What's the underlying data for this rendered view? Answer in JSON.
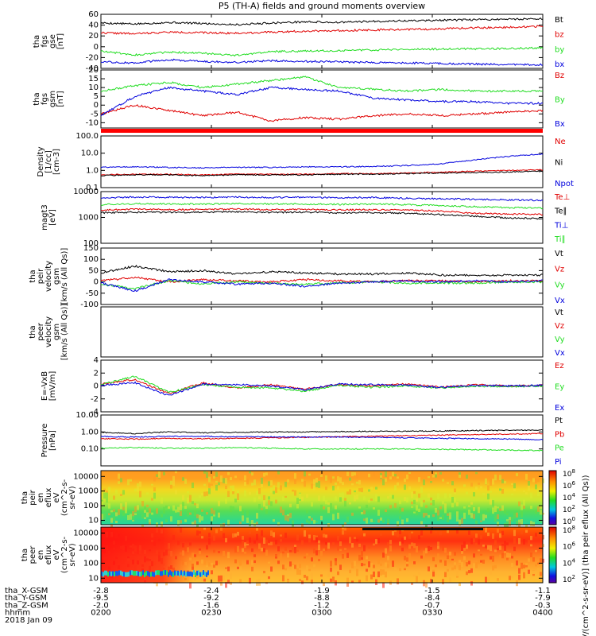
{
  "title": "P5 (TH-A) fields and ground moments overview",
  "colors": {
    "black": "#000000",
    "red": "#e00000",
    "green": "#22dd22",
    "blue": "#0000dd"
  },
  "chart_data": [
    {
      "id": "fgs-gse",
      "type": "line",
      "ylabel": [
        "tha",
        "fgs",
        "gse",
        "[nT]"
      ],
      "ylim": [
        -40,
        60
      ],
      "yticks": [
        60,
        40,
        20,
        0,
        -20,
        -40
      ],
      "series": [
        {
          "name": "Bt",
          "color": "#000000",
          "values": [
            44,
            42,
            45,
            43,
            41,
            44,
            46,
            45,
            47,
            48,
            49,
            50,
            51,
            52
          ]
        },
        {
          "name": "bz",
          "color": "#e00000",
          "values": [
            26,
            24,
            27,
            26,
            25,
            27,
            29,
            30,
            31,
            32,
            33,
            35,
            36,
            38
          ]
        },
        {
          "name": "by",
          "color": "#22dd22",
          "values": [
            -8,
            -15,
            -10,
            -12,
            -16,
            -9,
            -8,
            -7,
            -6,
            -5,
            -4,
            -4,
            -3,
            -2
          ]
        },
        {
          "name": "bx",
          "color": "#0000dd",
          "values": [
            -28,
            -30,
            -24,
            -27,
            -29,
            -26,
            -27,
            -28,
            -29,
            -30,
            -31,
            -32,
            -33,
            -33
          ]
        }
      ]
    },
    {
      "id": "fgs-gsm",
      "type": "line",
      "ylabel": [
        "tha",
        "fgs",
        "gsm",
        "[nT]"
      ],
      "ylim": [
        -13,
        20
      ],
      "yticks": [
        20,
        15,
        10,
        5,
        0,
        -5,
        -10
      ],
      "series": [
        {
          "name": "Bz",
          "color": "#e00000",
          "values": [
            -5,
            0,
            -3,
            -6,
            -4,
            -9,
            -7,
            -8,
            -6,
            -5,
            -6,
            -5,
            -4,
            -3
          ]
        },
        {
          "name": "By",
          "color": "#22dd22",
          "values": [
            8,
            11,
            13,
            10,
            12,
            14,
            16,
            10,
            9,
            8,
            9,
            8,
            8,
            8
          ]
        },
        {
          "name": "Bx",
          "color": "#0000dd",
          "values": [
            -6,
            5,
            10,
            8,
            6,
            10,
            9,
            8,
            4,
            3,
            2,
            2,
            1,
            1
          ]
        }
      ]
    },
    {
      "id": "density",
      "type": "line",
      "scale": "log",
      "ylabel": [
        "Density",
        "[1/cc]",
        "[cm-3]"
      ],
      "ylim": [
        0.1,
        100
      ],
      "yticks": [
        "100.0",
        "10.0",
        "1.0",
        "0.1"
      ],
      "series": [
        {
          "name": "Ne",
          "color": "#e00000",
          "values": [
            0.55,
            0.6,
            0.6,
            0.55,
            0.6,
            0.6,
            0.6,
            0.65,
            0.65,
            0.7,
            0.8,
            0.9,
            1.0,
            1.1
          ]
        },
        {
          "name": "Ni",
          "color": "#000000",
          "values": [
            0.5,
            0.55,
            0.55,
            0.5,
            0.55,
            0.55,
            0.55,
            0.6,
            0.6,
            0.65,
            0.7,
            0.75,
            0.8,
            0.9
          ]
        },
        {
          "name": "Npot",
          "color": "#0000dd",
          "values": [
            1.5,
            1.6,
            1.5,
            1.4,
            1.5,
            1.5,
            1.6,
            1.6,
            1.7,
            1.9,
            2.4,
            4.0,
            6.5,
            9.0
          ]
        }
      ]
    },
    {
      "id": "temperature",
      "type": "line",
      "scale": "log",
      "ylabel": [
        "magt3",
        "[eV]"
      ],
      "ylim": [
        100,
        10000
      ],
      "yticks": [
        "10000",
        "1000",
        "100"
      ],
      "series": [
        {
          "name": "Te⊥",
          "color": "#e00000",
          "values": [
            1900,
            2100,
            2000,
            2050,
            2100,
            2000,
            2050,
            1950,
            2000,
            1900,
            1750,
            1450,
            1350,
            1300
          ]
        },
        {
          "name": "Te∥",
          "color": "#000000",
          "values": [
            1500,
            1600,
            1550,
            1600,
            1650,
            1550,
            1600,
            1500,
            1550,
            1450,
            1300,
            1100,
            950,
            900
          ]
        },
        {
          "name": "Ti⊥",
          "color": "#0000dd",
          "values": [
            5600,
            6100,
            6000,
            5900,
            6100,
            5900,
            6000,
            5800,
            5900,
            5500,
            5300,
            5000,
            4800,
            4600
          ]
        },
        {
          "name": "Ti∥",
          "color": "#22dd22",
          "values": [
            3100,
            3400,
            3300,
            3300,
            3400,
            3300,
            3300,
            3200,
            3300,
            3100,
            2900,
            2600,
            2400,
            2300
          ]
        }
      ]
    },
    {
      "id": "peir-velocity",
      "type": "line",
      "ylabel": [
        "tha",
        "peir",
        "velocity",
        "gsm",
        "[km/s (All Qs)]"
      ],
      "ylim": [
        -100,
        150
      ],
      "yticks": [
        150,
        100,
        50,
        0,
        -50,
        -100
      ],
      "series": [
        {
          "name": "Vt",
          "color": "#000000",
          "values": [
            40,
            70,
            45,
            50,
            35,
            45,
            40,
            35,
            35,
            40,
            30,
            30,
            30,
            30
          ]
        },
        {
          "name": "Vz",
          "color": "#e00000",
          "values": [
            5,
            20,
            0,
            10,
            5,
            0,
            10,
            5,
            0,
            5,
            5,
            0,
            5,
            5
          ]
        },
        {
          "name": "Vy",
          "color": "#22dd22",
          "values": [
            -10,
            -30,
            5,
            -10,
            0,
            -5,
            -10,
            -5,
            0,
            -5,
            -5,
            -5,
            0,
            0
          ]
        },
        {
          "name": "Vx",
          "color": "#0000dd",
          "values": [
            -5,
            -40,
            10,
            0,
            -10,
            -5,
            -20,
            -5,
            0,
            5,
            0,
            5,
            0,
            5
          ]
        }
      ]
    },
    {
      "id": "peer-velocity",
      "type": "line",
      "ylabel": [
        "tha",
        "peer",
        "velocity",
        "gsm",
        "[km/s (All Qs)]"
      ],
      "series": [
        {
          "name": "Vt",
          "color": "#000000",
          "values": []
        },
        {
          "name": "Vz",
          "color": "#e00000",
          "values": []
        },
        {
          "name": "Vy",
          "color": "#22dd22",
          "values": []
        },
        {
          "name": "Vx",
          "color": "#0000dd",
          "values": []
        }
      ]
    },
    {
      "id": "efield",
      "type": "line",
      "ylabel": [
        "E=-VxB",
        "[mV/m]"
      ],
      "ylim": [
        -4,
        4
      ],
      "yticks": [
        4,
        2,
        0,
        -2,
        -4
      ],
      "series": [
        {
          "name": "Ez",
          "color": "#e00000",
          "values": [
            0.3,
            1.0,
            -1.2,
            0.5,
            -0.3,
            0.2,
            -0.5,
            0.2,
            0,
            0.3,
            -0.2,
            0.2,
            0,
            0.1
          ]
        },
        {
          "name": "Ey",
          "color": "#22dd22",
          "values": [
            0.2,
            1.5,
            -1.0,
            0.2,
            -0.2,
            -0.3,
            -0.8,
            0.1,
            -0.2,
            0,
            -0.3,
            0,
            -0.1,
            0
          ]
        },
        {
          "name": "Ex",
          "color": "#0000dd",
          "values": [
            0.1,
            0.5,
            -1.5,
            0.3,
            0.2,
            0,
            -0.6,
            0.3,
            0.2,
            0.1,
            -0.2,
            0.1,
            0,
            0.1
          ]
        }
      ]
    },
    {
      "id": "pressure",
      "type": "line",
      "scale": "log",
      "ylabel": [
        "Pressure",
        "[nPa]"
      ],
      "ylim": [
        0.01,
        10
      ],
      "yticks": [
        "10.00",
        "1.00",
        "0.10"
      ],
      "series": [
        {
          "name": "Pt",
          "color": "#000000",
          "values": [
            0.95,
            0.8,
            1.0,
            0.9,
            0.95,
            1.0,
            1.0,
            1.05,
            1.1,
            1.1,
            1.15,
            1.2,
            1.25,
            1.3
          ]
        },
        {
          "name": "Pb",
          "color": "#e00000",
          "values": [
            0.4,
            0.38,
            0.42,
            0.4,
            0.42,
            0.45,
            0.48,
            0.52,
            0.56,
            0.6,
            0.65,
            0.7,
            0.75,
            0.8
          ]
        },
        {
          "name": "Pe",
          "color": "#22dd22",
          "values": [
            0.11,
            0.12,
            0.11,
            0.11,
            0.12,
            0.11,
            0.1,
            0.1,
            0.1,
            0.1,
            0.095,
            0.09,
            0.085,
            0.08
          ]
        },
        {
          "name": "Pi",
          "color": "#0000dd",
          "values": [
            0.55,
            0.5,
            0.55,
            0.55,
            0.52,
            0.52,
            0.5,
            0.5,
            0.48,
            0.45,
            0.42,
            0.4,
            0.38,
            0.35
          ]
        }
      ]
    },
    {
      "id": "peir-spectrogram",
      "type": "heatmap",
      "ylabel": [
        "tha",
        "peir",
        "en",
        "eflux",
        "eV",
        "(cm^2-s-",
        "sr-eV)"
      ],
      "ylim": [
        5,
        25000
      ],
      "yticks": [
        "10000",
        "1000",
        "100",
        "10"
      ],
      "colorbar": {
        "ticks": [
          "10^8",
          "10^6",
          "10^4",
          "10^2",
          "10^0"
        ]
      }
    },
    {
      "id": "peer-spectrogram",
      "type": "heatmap",
      "ylabel": [
        "tha",
        "peer",
        "en",
        "eflux",
        "eV",
        "(cm^2-s-",
        "sr-eV)"
      ],
      "ylim": [
        5,
        25000
      ],
      "yticks": [
        "10000",
        "1000",
        "100",
        "10"
      ],
      "colorbar": {
        "ticks": [
          "10^8",
          "10^6",
          "10^4",
          "10^2"
        ]
      }
    }
  ],
  "colorbar_label": "[eV/(cm^2-s-sr-eV)] (tha peir eflux (All Qs))",
  "footer": {
    "labels": [
      "tha_X-GSM",
      "tha_Y-GSM",
      "tha_Z-GSM",
      "hhmm",
      "2018 Jan 09"
    ],
    "columns": [
      {
        "x": "-2.8",
        "y": "-9.5",
        "z": "-2.0",
        "time": "0200"
      },
      {
        "x": "-2.4",
        "y": "-9.2",
        "z": "-1.6",
        "time": "0230"
      },
      {
        "x": "-1.9",
        "y": "-8.8",
        "z": "-1.2",
        "time": "0300"
      },
      {
        "x": "-1.5",
        "y": "-8.4",
        "z": "-0.7",
        "time": "0330"
      },
      {
        "x": "-1.1",
        "y": "-7.9",
        "z": "-0.3",
        "time": "0400"
      }
    ]
  }
}
